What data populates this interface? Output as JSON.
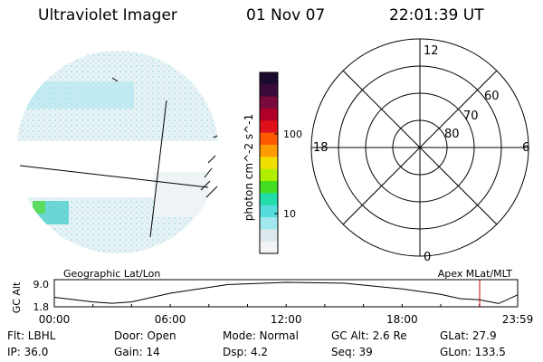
{
  "header": {
    "title": "Ultraviolet Imager",
    "date": "01 Nov 07",
    "time": "22:01:39 UT"
  },
  "colorbar": {
    "label": "photon cm^-2 s^-1",
    "ticks": [
      "100",
      "10"
    ],
    "colors": [
      "#1a0a2e",
      "#3b0a3a",
      "#7a0a3a",
      "#b0002a",
      "#e0101a",
      "#ff5a00",
      "#ff9a00",
      "#f0e000",
      "#b0ee00",
      "#44dd22",
      "#22ddaa",
      "#55dddd",
      "#a0e8ee",
      "#dce8ec",
      "#f2f4f6"
    ]
  },
  "polar_plot": {
    "mlt_labels": [
      "12",
      "18",
      "6",
      "0"
    ],
    "lat_labels": [
      "60",
      "70",
      "80"
    ]
  },
  "timeline": {
    "left_label": "Geographic Lat/Lon",
    "right_label": "Apex MLat/MLT",
    "ylabel": "GC Alt",
    "yticks": [
      "9.0",
      "1.8"
    ],
    "xticks": [
      "00:00",
      "06:00",
      "12:00",
      "18:00",
      "23:59"
    ],
    "marker_time": "22:01",
    "marker_color": "#cc0000"
  },
  "info": {
    "flt": "Flt: LBHL",
    "door": "Door: Open",
    "mode": "Mode: Normal",
    "gc_alt": "GC Alt: 2.6 Re",
    "glat": "GLat:  27.9",
    "ip": "IP: 36.0",
    "gain": "Gain: 14",
    "dsp": "Dsp:    4.2",
    "seq": "Seq: 39",
    "glon": "GLon: 133.5"
  },
  "chart_data": {
    "type": "line",
    "title": "",
    "xlabel": "",
    "ylabel": "GC Alt",
    "x": [
      "00:00",
      "02:00",
      "03:00",
      "04:00",
      "06:00",
      "09:00",
      "12:00",
      "15:00",
      "18:00",
      "20:00",
      "21:00",
      "22:00",
      "23:00",
      "23:59"
    ],
    "series": [
      {
        "values": [
          3.5,
          1.8,
          1.3,
          1.8,
          5.0,
          8.2,
          9.0,
          8.7,
          6.6,
          4.6,
          3.0,
          2.6,
          1.2,
          4.4
        ]
      }
    ],
    "ylim": [
      0,
      10
    ],
    "grid": false
  }
}
